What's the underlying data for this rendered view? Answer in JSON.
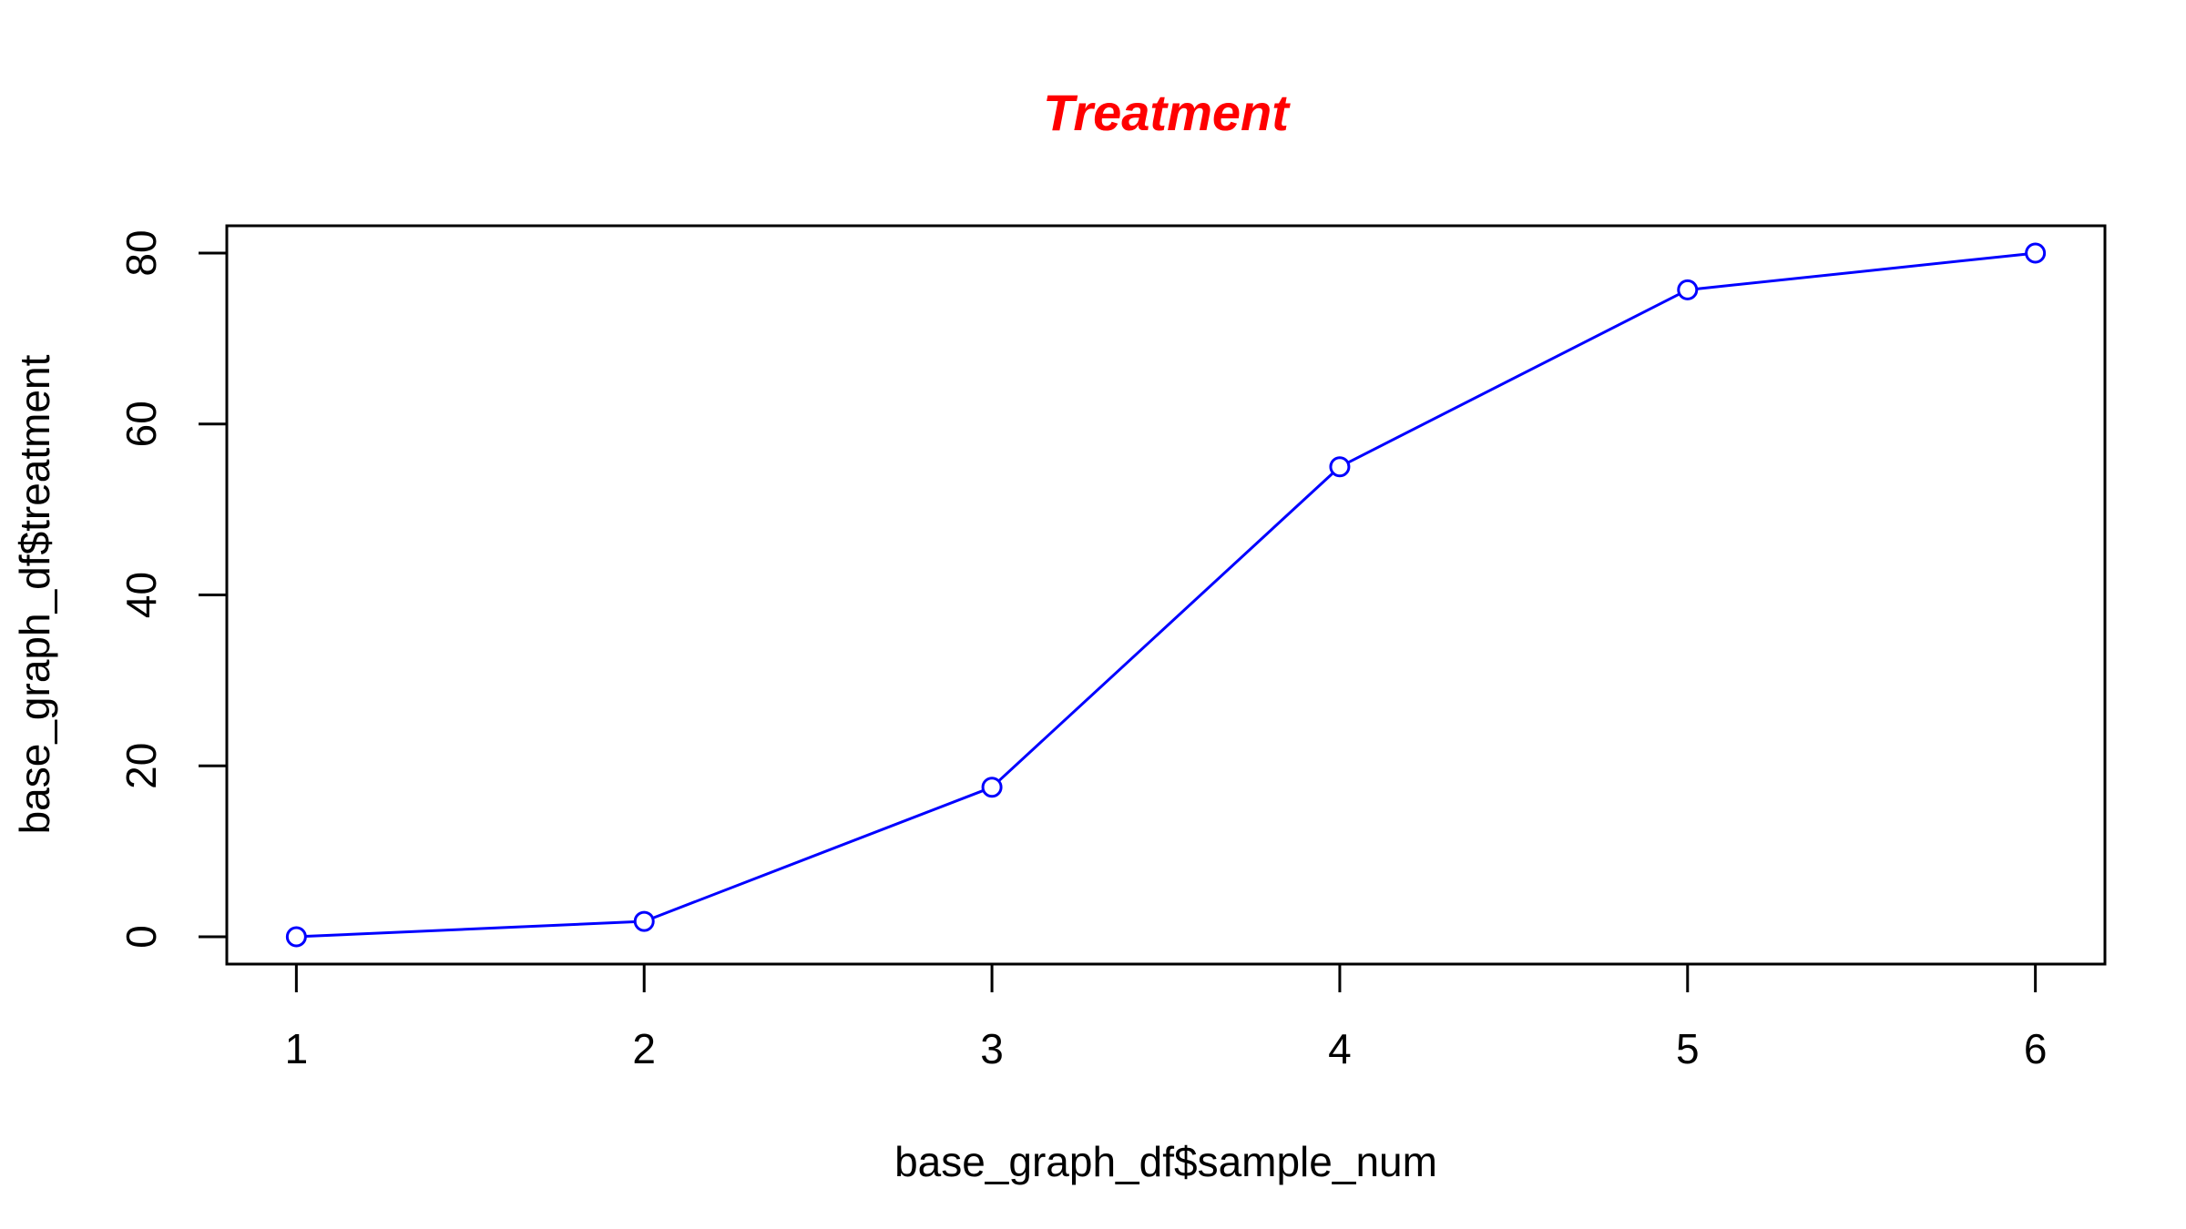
{
  "chart_data": {
    "type": "line",
    "title": "Treatment",
    "title_color": "#ff0000",
    "xlabel": "base_graph_df$sample_num",
    "ylabel": "base_graph_df$treatment",
    "x": [
      1,
      2,
      3,
      4,
      5,
      6
    ],
    "series": [
      {
        "values": [
          0,
          1.8,
          17.5,
          55,
          75.7,
          80
        ],
        "color": "#0000ff",
        "marker": "open-circle"
      }
    ],
    "xlim": [
      0.8,
      6.2
    ],
    "ylim": [
      -3.2,
      83.2
    ],
    "x_ticks": [
      1,
      2,
      3,
      4,
      5,
      6
    ],
    "y_ticks": [
      0,
      20,
      40,
      60,
      80
    ],
    "grid": false,
    "legend": "none"
  }
}
